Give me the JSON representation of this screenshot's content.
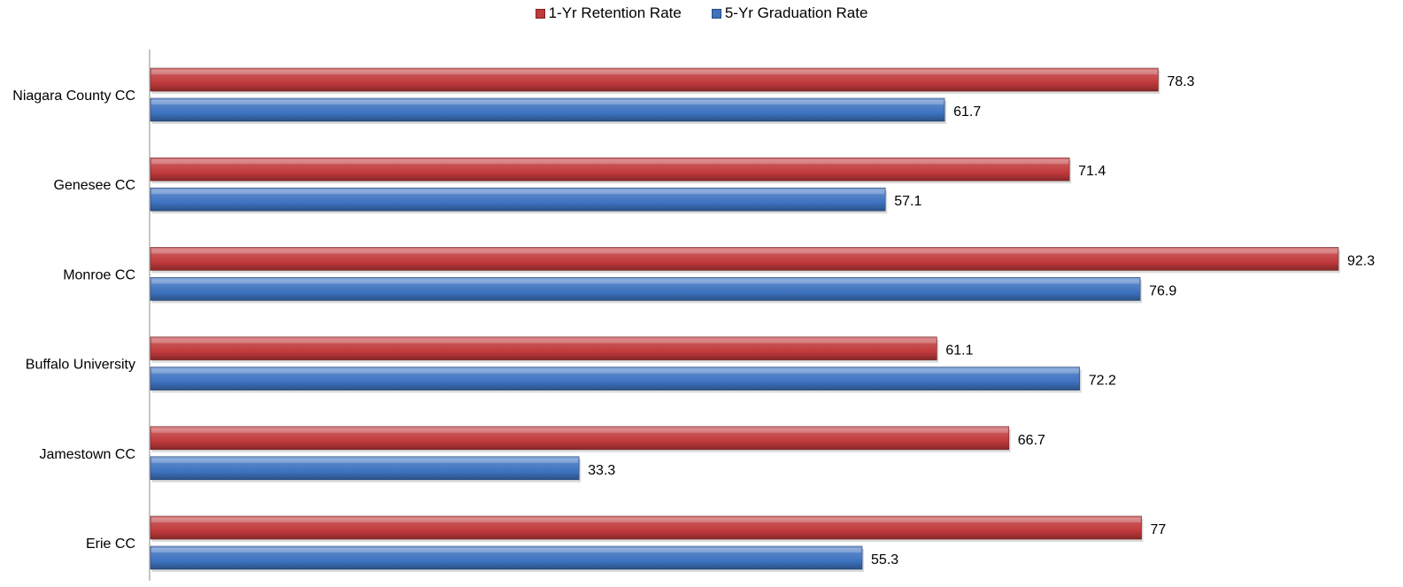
{
  "chart_data": {
    "type": "bar",
    "orientation": "horizontal",
    "categories": [
      "Niagara County CC",
      "Genesee CC",
      "Monroe CC",
      "Buffalo University",
      "Jamestown CC",
      "Erie CC"
    ],
    "series": [
      {
        "name": "1-Yr Retention Rate",
        "color": "#c0393b",
        "values": [
          78.3,
          71.4,
          92.3,
          61.1,
          66.7,
          77
        ],
        "labels": [
          "78.3",
          "71.4",
          "92.3",
          "61.1",
          "66.7",
          "77"
        ]
      },
      {
        "name": "5-Yr Graduation Rate",
        "color": "#3d72c0",
        "values": [
          61.7,
          57.1,
          76.9,
          72.2,
          33.3,
          55.3
        ],
        "labels": [
          "61.7",
          "57.1",
          "76.9",
          "72.2",
          "33.3",
          "55.3"
        ]
      }
    ],
    "xlim": [
      0,
      92.3
    ],
    "grid": false,
    "legend_position": "top-center",
    "data_labels": true
  }
}
